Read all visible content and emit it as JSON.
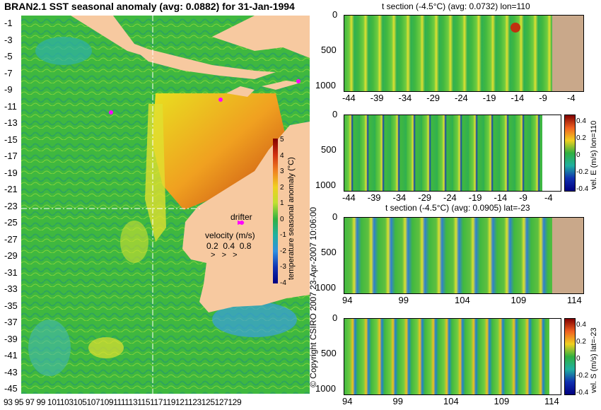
{
  "title": "BRAN2.1 SST seasonal anomaly (avg: 0.0882) for 31-Jan-1994",
  "map": {
    "lat_ticks": [
      "-1",
      "-3",
      "-5",
      "-7",
      "-9",
      "-11",
      "-13",
      "-15",
      "-17",
      "-19",
      "-21",
      "-23",
      "-25",
      "-27",
      "-29",
      "-31",
      "-33",
      "-35",
      "-37",
      "-39",
      "-41",
      "-43",
      "-45"
    ],
    "lon_ticks": [
      "93",
      "95",
      "97",
      "99",
      "101",
      "103",
      "105",
      "107",
      "109",
      "111",
      "113",
      "115",
      "117",
      "119",
      "121",
      "123",
      "125",
      "127",
      "129"
    ],
    "lon_ticks_text": "93 95 97 99 101103105107109111113115117119121123125127129",
    "drifter_label": "drifter",
    "velocity_label": "velocity (m/s)",
    "velocity_values": "0.2  0.4  0.8",
    "velocity_arrows": ">   >   >",
    "colorbar_label": "temperature seasonal anomaly (°C)",
    "colorbar_ticks": [
      "5",
      "4",
      "3",
      "2",
      "1",
      "0",
      "-1",
      "-2",
      "-3",
      "-4"
    ],
    "copyright": "© Copyright CSIRO 2007   23-Apr-2007 10:06:00",
    "colors": {
      "land": "#f7c9a0",
      "drifter": "#ff00ff"
    }
  },
  "panels": [
    {
      "title": "t section (-4.5°C) (avg: 0.0732) lon=110",
      "y_ticks": [
        "0",
        "500",
        "1000"
      ],
      "x_ticks": [
        "-44",
        "-39",
        "-34",
        "-29",
        "-24",
        "-19",
        "-14",
        "-9",
        "-4"
      ]
    },
    {
      "title": "",
      "y_ticks": [
        "0",
        "500",
        "1000"
      ],
      "x_ticks": [
        "-44",
        "-39",
        "-34",
        "-29",
        "-24",
        "-19",
        "-14",
        "-9",
        "-4"
      ],
      "colorbar_label": "vel. E (m/s) lon=110",
      "colorbar_ticks": [
        "0.4",
        "0.2",
        "0",
        "-0.2",
        "-0.4"
      ]
    },
    {
      "title": "t section (-4.5°C) (avg: 0.0905) lat=-23",
      "y_ticks": [
        "0",
        "500",
        "1000"
      ],
      "x_ticks": [
        "94",
        "99",
        "104",
        "109",
        "114"
      ]
    },
    {
      "title": "",
      "y_ticks": [
        "0",
        "500",
        "1000"
      ],
      "x_ticks": [
        "94",
        "99",
        "104",
        "109",
        "114"
      ],
      "colorbar_label": "vel. S (m/s) lat=-23",
      "colorbar_ticks": [
        "0.4",
        "0.2",
        "0",
        "-0.2",
        "-0.4"
      ]
    }
  ]
}
